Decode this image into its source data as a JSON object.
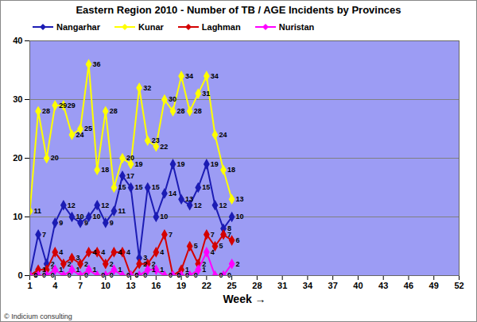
{
  "chart_data": {
    "type": "line",
    "title": "Eastern Region 2010 - Number of TB / AGE Incidents by Provinces",
    "x_label": "Week",
    "caption": "© Indicium consulting",
    "x": [
      1,
      2,
      3,
      4,
      5,
      6,
      7,
      8,
      9,
      10,
      11,
      12,
      13,
      14,
      15,
      16,
      17,
      18,
      19,
      20,
      21,
      22,
      23,
      24,
      25
    ],
    "series": [
      {
        "name": "Nangarhar",
        "color": "#1c1cb4",
        "values": [
          0,
          7,
          2,
          9,
          12,
          10,
          9,
          10,
          12,
          9,
          11,
          17,
          15,
          3,
          15,
          10,
          14,
          19,
          13,
          12,
          15,
          19,
          12,
          8,
          10
        ]
      },
      {
        "name": "Kunar",
        "color": "#ffff00",
        "values": [
          11,
          28,
          20,
          29,
          29,
          24,
          25,
          36,
          18,
          28,
          15,
          20,
          19,
          32,
          23,
          22,
          30,
          28,
          34,
          28,
          31,
          34,
          24,
          18,
          13
        ]
      },
      {
        "name": "Laghman",
        "color": "#d40000",
        "values": [
          0,
          1,
          1,
          4,
          2,
          3,
          2,
          4,
          4,
          2,
          4,
          4,
          0,
          2,
          2,
          4,
          7,
          0,
          1,
          5,
          2,
          7,
          5,
          7,
          6
        ]
      },
      {
        "name": "Nuristan",
        "color": "#ff00ff",
        "values": [
          0,
          0,
          0,
          1,
          0,
          1,
          0,
          1,
          0,
          0,
          1,
          0,
          0,
          0,
          1,
          1,
          0,
          0,
          0,
          0,
          1,
          4,
          0,
          0,
          2
        ]
      }
    ],
    "xlim": [
      1,
      52
    ],
    "xticks": [
      1,
      4,
      7,
      10,
      13,
      16,
      19,
      22,
      25,
      28,
      31,
      34,
      37,
      40,
      43,
      46,
      49,
      52
    ],
    "ylim": [
      0,
      40
    ],
    "yticks": [
      0,
      10,
      20,
      30,
      40
    ],
    "grid": true,
    "legend": "top",
    "data_labels": true,
    "marker": "diamond",
    "line_style": "solid"
  }
}
